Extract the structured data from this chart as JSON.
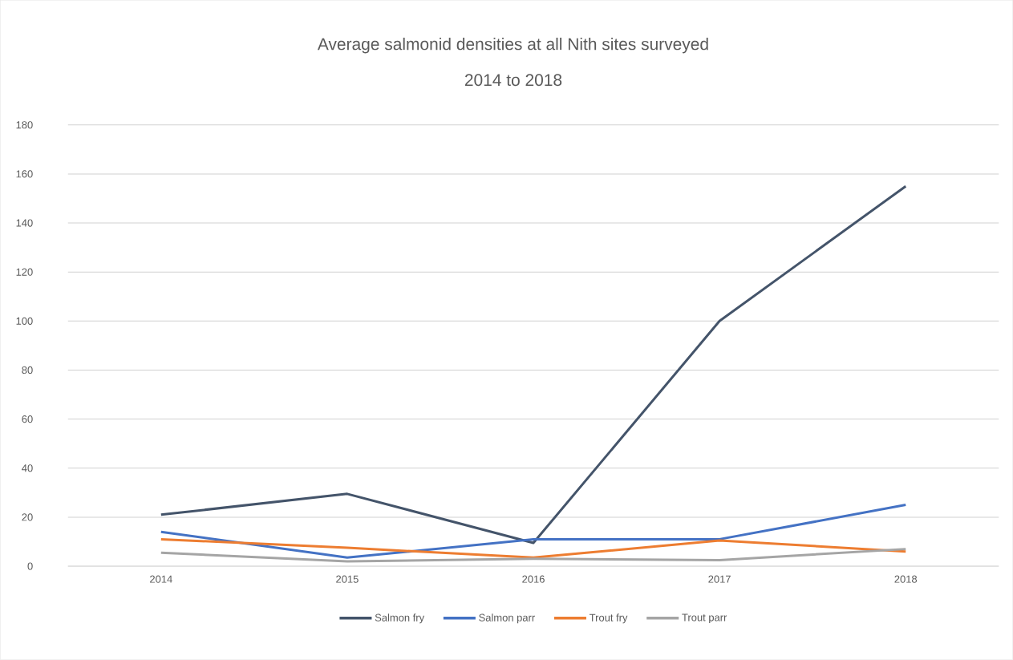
{
  "chart_data": {
    "type": "line",
    "title": "Average salmonid densities at all Nith sites surveyed",
    "subtitle": "2014 to 2018",
    "categories": [
      "2014",
      "2015",
      "2016",
      "2017",
      "2018"
    ],
    "series": [
      {
        "name": "Salmon fry",
        "color": "#44546a",
        "values": [
          21,
          29.5,
          9.5,
          100,
          155
        ]
      },
      {
        "name": "Salmon parr",
        "color": "#4472c4",
        "values": [
          14,
          3.5,
          11,
          11,
          25
        ]
      },
      {
        "name": "Trout fry",
        "color": "#ed7d31",
        "values": [
          11,
          7.5,
          3.5,
          10.5,
          6
        ]
      },
      {
        "name": "Trout parr",
        "color": "#a5a5a5",
        "values": [
          5.5,
          2,
          3,
          2.5,
          7
        ]
      }
    ],
    "ylim": [
      0,
      180
    ],
    "yticks": [
      0,
      20,
      40,
      60,
      80,
      100,
      120,
      140,
      160,
      180
    ],
    "grid": "y",
    "legend": "bottom",
    "marker": "none",
    "line_style": "solid"
  }
}
